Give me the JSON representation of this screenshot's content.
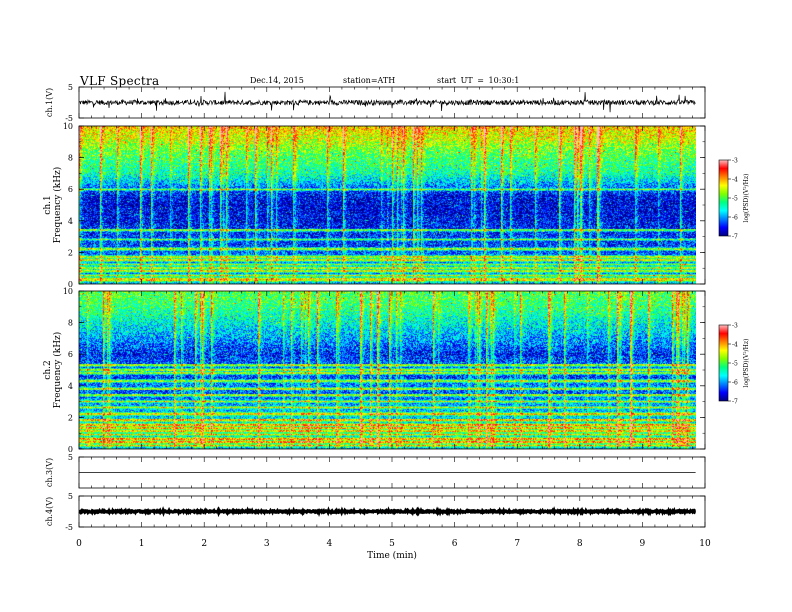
{
  "header": {
    "title": "VLF  Spectra",
    "date": "Dec.14, 2015",
    "station": "station=ATH",
    "start_ut": "start  UT  =   10:30:1"
  },
  "colorbar": {
    "label": "log(PSD)(V²/Hz)",
    "ticks": [
      "-3",
      "-4",
      "-5",
      "-6",
      "-7"
    ],
    "range": [
      -7,
      -3
    ],
    "colormap": [
      "#00007f",
      "#0000ff",
      "#0080ff",
      "#00ffff",
      "#00ff80",
      "#80ff00",
      "#ffff00",
      "#ff8000",
      "#ff0000",
      "#ffc0c0"
    ]
  },
  "chart_data": [
    {
      "type": "line",
      "panel": "ch1-waveform",
      "ylabel": "ch.1(V)",
      "yticks": [
        "5",
        "-5"
      ],
      "ylim": [
        -5,
        5
      ],
      "x_range_min": [
        0,
        9.85
      ],
      "mean": 0,
      "noise_amplitude": 0.8,
      "spike_amplitude": 3
    },
    {
      "type": "heatmap",
      "panel": "ch1-spectrogram",
      "ylabel": "Frequency  (kHz)",
      "ylabel_channel": "ch.1",
      "yticks": [
        "10",
        "8",
        "6",
        "4",
        "2",
        "0"
      ],
      "ylim": [
        0,
        10
      ],
      "x_range_min": [
        0,
        9.85
      ],
      "profile_khz": [
        0,
        0.5,
        1,
        1.5,
        2,
        2.5,
        3,
        4,
        5,
        5.5,
        6,
        6.5,
        7,
        8,
        8.5,
        9,
        9.5,
        10
      ],
      "profile_logpsd": [
        -5.8,
        -6.0,
        -6.2,
        -6.0,
        -6.3,
        -6.4,
        -6.4,
        -6.6,
        -6.7,
        -6.6,
        -6.3,
        -5.8,
        -5.4,
        -5.1,
        -4.9,
        -4.6,
        -4.4,
        -4.2
      ],
      "lines_khz": [
        0.2,
        0.3,
        0.5,
        0.8,
        1.0,
        1.2,
        1.5,
        1.7,
        2.2,
        2.8,
        3.4,
        6.0
      ]
    },
    {
      "type": "heatmap",
      "panel": "ch2-spectrogram",
      "ylabel": "Frequency  (kHz)",
      "ylabel_channel": "ch.2",
      "yticks": [
        "10",
        "8",
        "6",
        "4",
        "2",
        "0"
      ],
      "ylim": [
        0,
        10
      ],
      "x_range_min": [
        0,
        9.85
      ],
      "profile_khz": [
        0,
        0.5,
        1,
        1.5,
        2,
        2.5,
        3,
        3.5,
        4,
        4.5,
        5,
        5.5,
        6,
        7,
        8,
        9,
        10
      ],
      "profile_logpsd": [
        -5.8,
        -5.5,
        -5.8,
        -5.6,
        -5.8,
        -5.9,
        -6.0,
        -6.3,
        -6.1,
        -6.4,
        -6.2,
        -6.3,
        -6.5,
        -6.0,
        -5.6,
        -5.2,
        -5.0
      ],
      "lines_khz": [
        0.2,
        0.4,
        0.6,
        0.9,
        1.1,
        1.3,
        1.5,
        1.8,
        2.2,
        2.6,
        3.0,
        3.4,
        3.8,
        4.3,
        4.8,
        5.0,
        5.3
      ]
    },
    {
      "type": "line",
      "panel": "ch3-waveform",
      "ylabel": "ch.3(V)",
      "yticks": [
        "5"
      ],
      "ylim": [
        -5,
        5
      ],
      "x_range_min": [
        0,
        9.85
      ],
      "mean": 0,
      "noise_amplitude": 0
    },
    {
      "type": "line",
      "panel": "ch4-waveform",
      "ylabel": "ch.4(V)",
      "yticks": [
        "5",
        "-5"
      ],
      "ylim": [
        -5,
        5
      ],
      "x_range_min": [
        0,
        9.85
      ],
      "mean": 0,
      "noise_amplitude": 0.25
    }
  ],
  "xaxis": {
    "label": "Time  (min)",
    "ticks": [
      "0",
      "1",
      "2",
      "3",
      "4",
      "5",
      "6",
      "7",
      "8",
      "9",
      "10"
    ],
    "range": [
      0,
      10
    ]
  }
}
